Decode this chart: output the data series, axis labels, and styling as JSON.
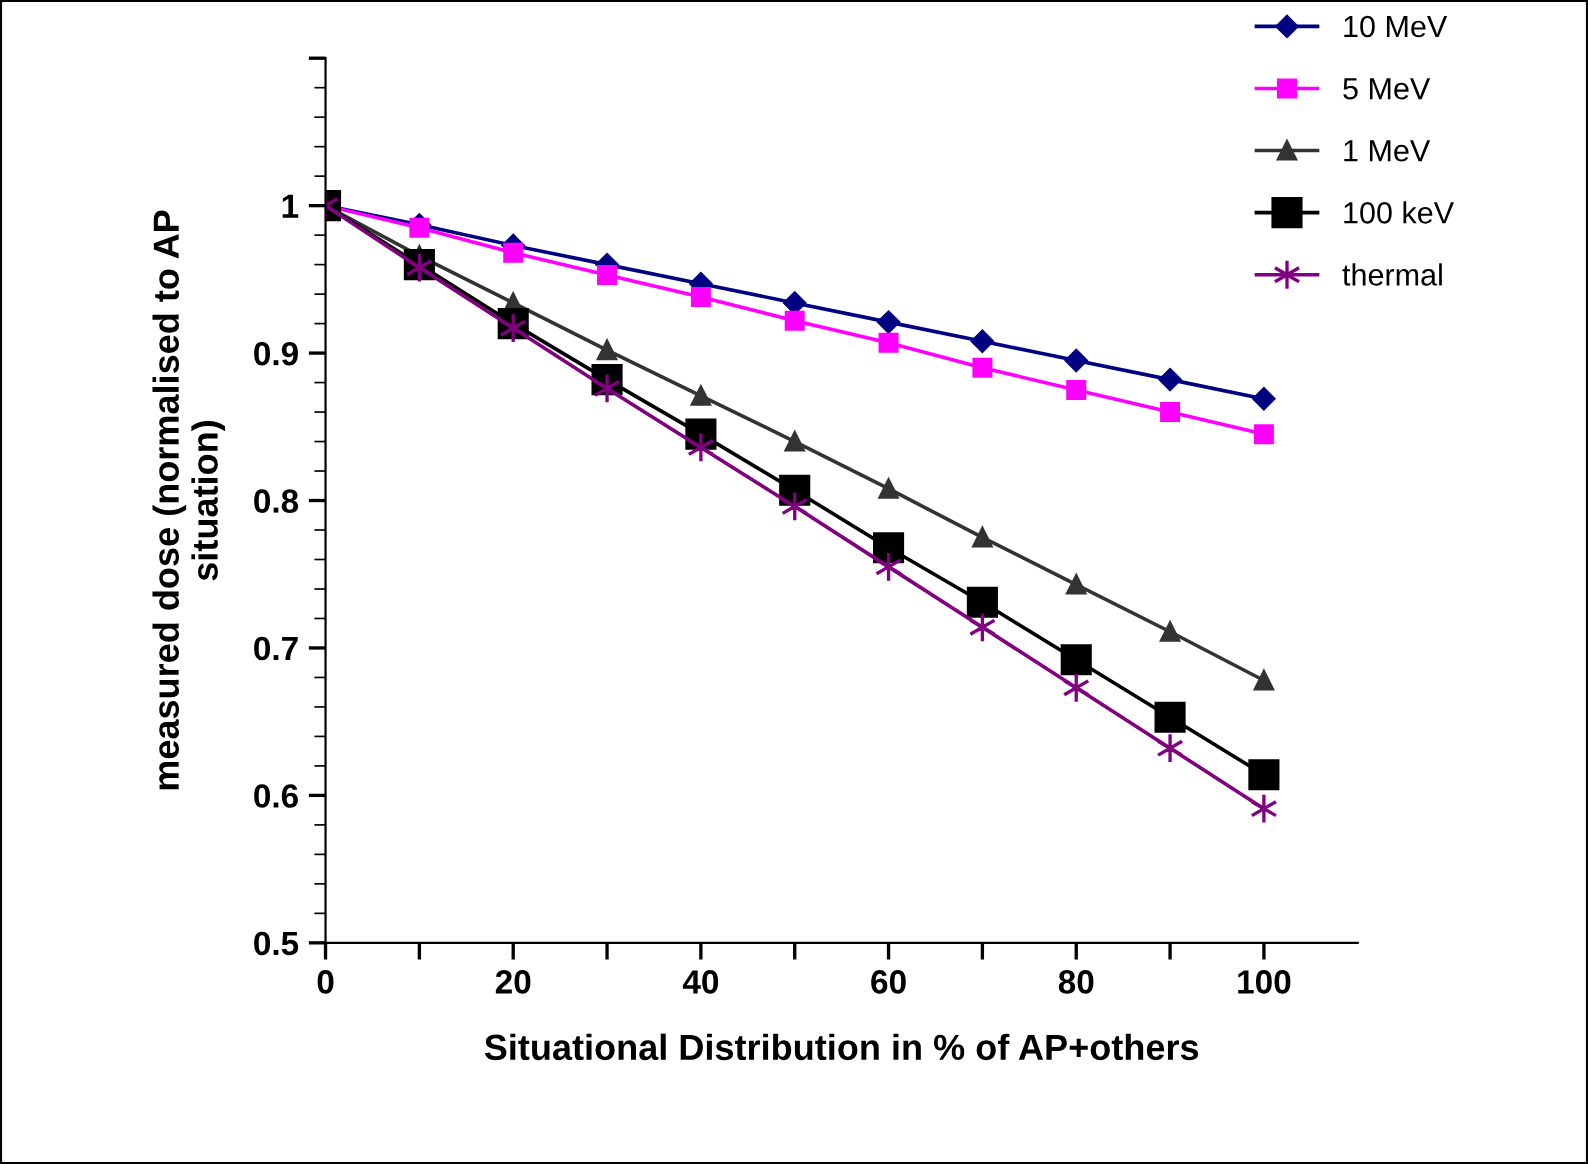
{
  "chart_data": {
    "type": "line",
    "xlabel": "Situational Distribution in % of AP+others",
    "ylabel": "measured dose (normalised to AP\nsituation)",
    "x": [
      0,
      10,
      20,
      30,
      40,
      50,
      60,
      70,
      80,
      90,
      100
    ],
    "series": [
      {
        "name": "10 MeV",
        "color": "#000080",
        "marker": "diamond",
        "values": [
          1,
          0.987,
          0.973,
          0.96,
          0.947,
          0.934,
          0.921,
          0.908,
          0.895,
          0.882,
          0.869
        ]
      },
      {
        "name": "5 MeV",
        "color": "#ff00ff",
        "marker": "square",
        "values": [
          1,
          0.985,
          0.968,
          0.953,
          0.938,
          0.922,
          0.907,
          0.89,
          0.875,
          0.86,
          0.845
        ]
      },
      {
        "name": "1 MeV",
        "color": "#333333",
        "marker": "triangle",
        "values": [
          1,
          0.966,
          0.934,
          0.902,
          0.871,
          0.84,
          0.808,
          0.775,
          0.743,
          0.711,
          0.678
        ]
      },
      {
        "name": "100 keV",
        "color": "#000000",
        "marker": "square",
        "values": [
          1,
          0.96,
          0.92,
          0.882,
          0.845,
          0.807,
          0.768,
          0.731,
          0.692,
          0.653,
          0.614
        ]
      },
      {
        "name": "thermal",
        "color": "#800080",
        "marker": "cross",
        "values": [
          1,
          0.958,
          0.917,
          0.876,
          0.836,
          0.796,
          0.755,
          0.714,
          0.673,
          0.632,
          0.591
        ]
      }
    ],
    "xlim": [
      0,
      110
    ],
    "xticks": [
      0,
      {
        "value": 10,
        "label": null
      },
      20,
      {
        "value": 30,
        "label": null
      },
      40,
      {
        "value": 50,
        "label": null
      },
      60,
      {
        "value": 70,
        "label": null
      },
      80,
      {
        "value": 90,
        "label": null
      },
      100
    ],
    "ylim": [
      0.5,
      1.1
    ],
    "yticks": [
      0.5,
      0.6,
      0.7,
      0.8,
      0.9,
      1,
      {
        "value": 1.1,
        "label": null
      }
    ],
    "grid": false,
    "legend": "top right",
    "line_style": "solid"
  }
}
